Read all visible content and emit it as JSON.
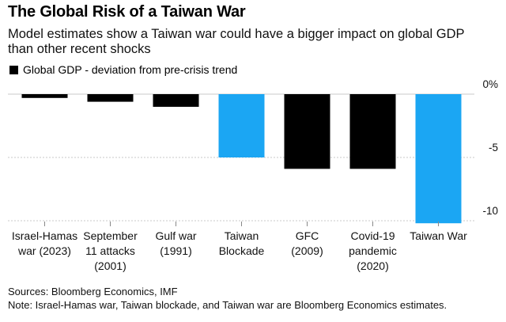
{
  "header": {
    "title": "The Global Risk of a Taiwan War",
    "subtitle": "Model estimates show a Taiwan war could have a bigger impact on global GDP than other recent shocks"
  },
  "footer": {
    "sources": "Sources: Bloomberg Economics, IMF",
    "note": "Note: Israel-Hamas war, Taiwan blockade, and Taiwan war are Bloomberg Economics estimates."
  },
  "chart_data": {
    "type": "bar",
    "legend": "Global GDP - deviation from pre-crisis trend",
    "categories": [
      [
        "Israel-Hamas",
        "war (2023)"
      ],
      [
        "September",
        "11 attacks",
        "(2001)"
      ],
      [
        "Gulf war",
        "(1991)"
      ],
      [
        "Taiwan",
        "Blockade"
      ],
      [
        "GFC",
        "(2009)"
      ],
      [
        "Covid-19",
        "pandemic",
        "(2020)"
      ],
      [
        "Taiwan War"
      ]
    ],
    "values": [
      -0.3,
      -0.6,
      -1.0,
      -5.0,
      -5.9,
      -5.9,
      -10.2
    ],
    "highlight": [
      false,
      false,
      false,
      true,
      false,
      false,
      true
    ],
    "colors": {
      "default": "#000000",
      "highlight": "#1ba6f3",
      "grid": "#c8c8c8"
    },
    "yticks": [
      0,
      -5,
      -10
    ],
    "ytick_labels": [
      "0%",
      "-5",
      "-10"
    ],
    "ylim": [
      -10.4,
      0
    ],
    "grid": true
  }
}
